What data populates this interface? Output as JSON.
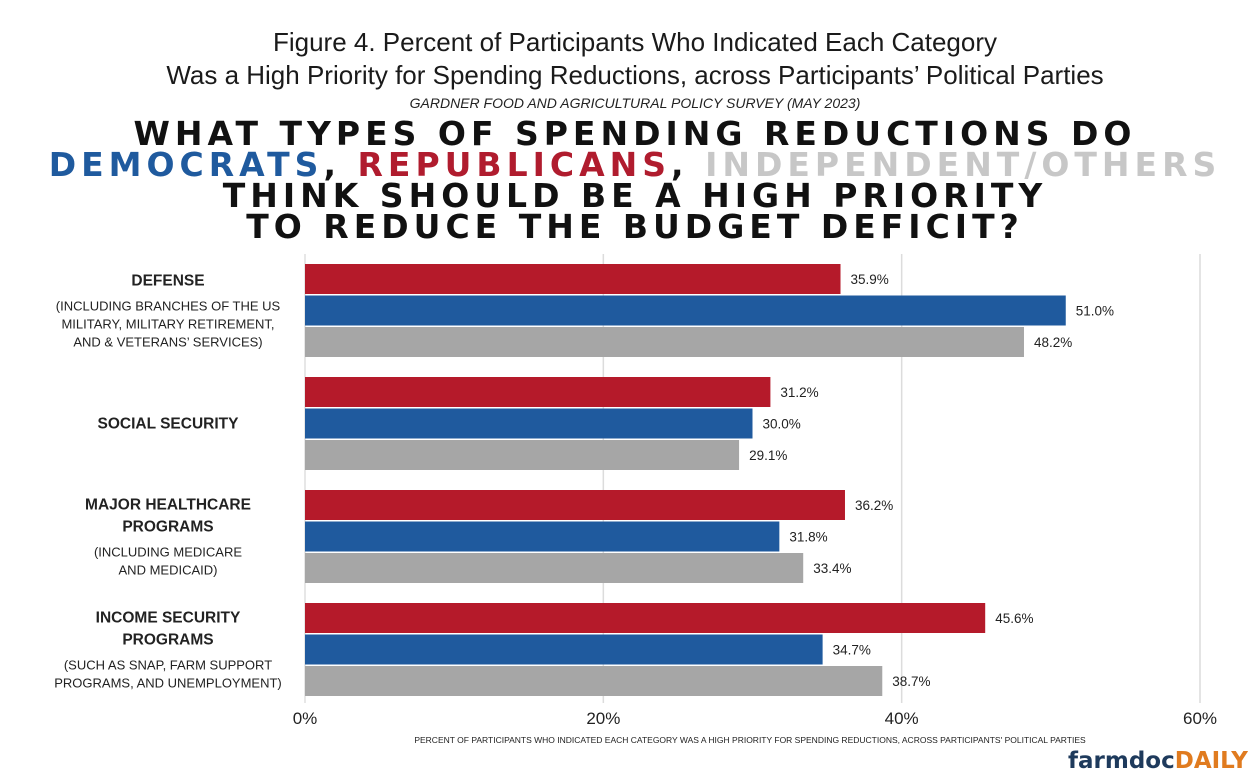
{
  "figure": {
    "title_line1": "Figure 4. Percent of Participants Who Indicated Each Category",
    "title_line2": "Was a High Priority for Spending Reductions, across Participants’ Political Parties",
    "subtitle": "GARDNER FOOD AND AGRICULTURAL POLICY SURVEY (MAY 2023)"
  },
  "headline": {
    "line1": "WHAT TYPES OF SPENDING REDUCTIONS DO",
    "dem": "DEMOCRATS",
    "sep1": ",",
    "rep": "REPUBLICANS",
    "sep2": ",",
    "ind": "INDEPENDENT/OTHERS",
    "line3": "THINK SHOULD BE A HIGH PRIORITY",
    "line4": "TO REDUCE THE BUDGET DEFICIT?"
  },
  "colors": {
    "republicans": "#b51a2a",
    "democrats": "#1f5a9e",
    "independents": "#a6a6a6",
    "gridline": "#dcdcdc"
  },
  "chart_data": {
    "type": "bar",
    "orientation": "horizontal",
    "categories": [
      {
        "main": [
          "DEFENSE"
        ],
        "sub": [
          "(INCLUDING BRANCHES OF THE US",
          "MILITARY, MILITARY RETIREMENT,",
          "AND & VETERANS’ SERVICES)"
        ]
      },
      {
        "main": [
          "SOCIAL SECURITY"
        ],
        "sub": []
      },
      {
        "main": [
          "MAJOR HEALTHCARE",
          "PROGRAMS"
        ],
        "sub": [
          "(INCLUDING MEDICARE",
          "AND MEDICAID)"
        ]
      },
      {
        "main": [
          "INCOME SECURITY",
          "PROGRAMS"
        ],
        "sub": [
          "(SUCH AS SNAP, FARM SUPPORT",
          "PROGRAMS, AND UNEMPLOYMENT)"
        ]
      }
    ],
    "series": [
      {
        "key": "republicans",
        "values": [
          35.9,
          31.2,
          36.2,
          45.6
        ],
        "labels": [
          "35.9%",
          "31.2%",
          "36.2%",
          "45.6%"
        ]
      },
      {
        "key": "democrats",
        "values": [
          51.0,
          30.0,
          31.8,
          34.7
        ],
        "labels": [
          "51.0%",
          "30.0%",
          "31.8%",
          "34.7%"
        ]
      },
      {
        "key": "independents",
        "values": [
          48.2,
          29.1,
          33.4,
          38.7
        ],
        "labels": [
          "48.2%",
          "29.1%",
          "33.4%",
          "38.7%"
        ]
      }
    ],
    "xlim": [
      0,
      60
    ],
    "xticks": [
      0,
      20,
      40,
      60
    ],
    "xtick_labels": [
      "0%",
      "20%",
      "40%",
      "60%"
    ],
    "xlabel": "PERCENT OF PARTICIPANTS WHO INDICATED EACH CATEGORY WAS A HIGH PRIORITY FOR SPENDING REDUCTIONS, ACROSS PARTICIPANTS' POLITICAL PARTIES",
    "grid": true
  },
  "brand": {
    "part1": "farmdoc",
    "part2": "DAILY"
  }
}
